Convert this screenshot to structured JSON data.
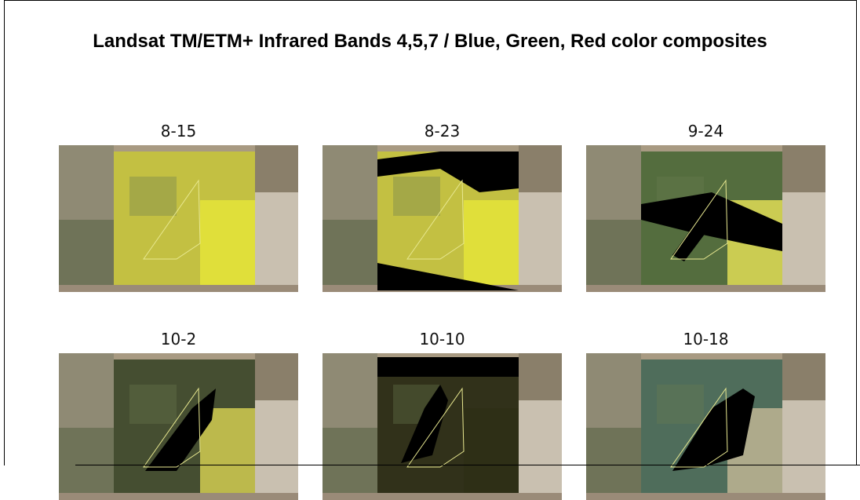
{
  "title": "Landsat TM/ETM+ Infrared Bands 4,5,7 / Blue, Green, Red color composites",
  "panels": [
    {
      "label": "8-15"
    },
    {
      "label": "8-23"
    },
    {
      "label": "9-24"
    },
    {
      "label": "10-2"
    },
    {
      "label": "10-10"
    },
    {
      "label": "10-18"
    }
  ]
}
